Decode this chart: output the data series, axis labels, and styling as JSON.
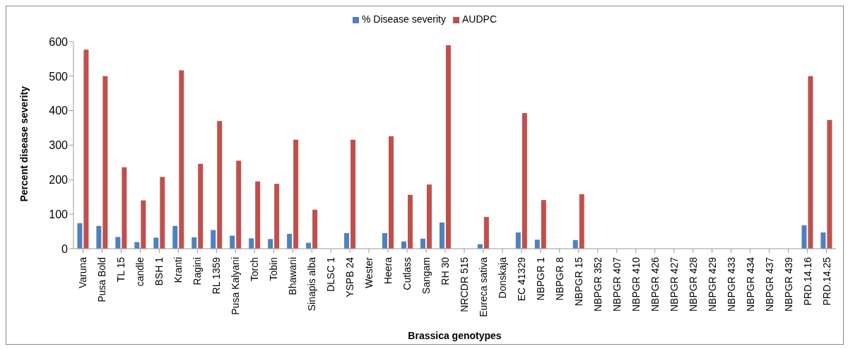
{
  "chart_data": {
    "type": "bar",
    "xlabel": "Brassica genotypes",
    "ylabel": "Percent disease severity",
    "categories": [
      "Varuna",
      "Pusa Bold",
      "TL 15",
      "candle",
      "BSH 1",
      "Kranti",
      "Ragini",
      "RL 1359",
      "Pusa Kalyani",
      "Torch",
      "Tobin",
      "Bhawani",
      "Sinapis alba",
      "DLSC 1",
      "YSPB 24",
      "Wester",
      "Heera",
      "Cutlass",
      "Sangam",
      "RH 30",
      "NRCDR 515",
      "Eureca sativa",
      "Donskaja",
      "EC 41329",
      "NBPGR 1",
      "NBPGR 8",
      "NBPGR 15",
      "NBPGR 352",
      "NBPGR 407",
      "NBPGR 410",
      "NBPGR 426",
      "NBPGR 427",
      "NBPGR 428",
      "NBPGR 429",
      "NBPGR 433",
      "NBPGR 434",
      "NBPGR 437",
      "NBPGR 439",
      "PRD.14.16",
      "PRD.14.25"
    ],
    "series": [
      {
        "name": "% Disease severity",
        "color": "#4f81bd",
        "values": [
          74,
          66,
          34,
          19,
          32,
          66,
          33,
          54,
          38,
          30,
          28,
          43,
          17,
          0,
          45,
          0,
          45,
          21,
          29,
          76,
          0,
          13,
          0,
          47,
          26,
          0,
          25,
          0,
          0,
          0,
          0,
          0,
          0,
          0,
          0,
          0,
          0,
          0,
          68,
          47
        ]
      },
      {
        "name": "AUDPC",
        "color": "#c0504d",
        "values": [
          577,
          500,
          236,
          140,
          208,
          517,
          246,
          370,
          255,
          195,
          188,
          316,
          113,
          0,
          316,
          0,
          326,
          156,
          186,
          590,
          0,
          92,
          0,
          393,
          141,
          0,
          158,
          0,
          0,
          0,
          0,
          0,
          0,
          0,
          0,
          0,
          0,
          0,
          500,
          373
        ]
      }
    ],
    "ylim": [
      0,
      600
    ],
    "yticks": [
      0,
      100,
      200,
      300,
      400,
      500,
      600
    ],
    "grid": false,
    "legend": "top"
  }
}
